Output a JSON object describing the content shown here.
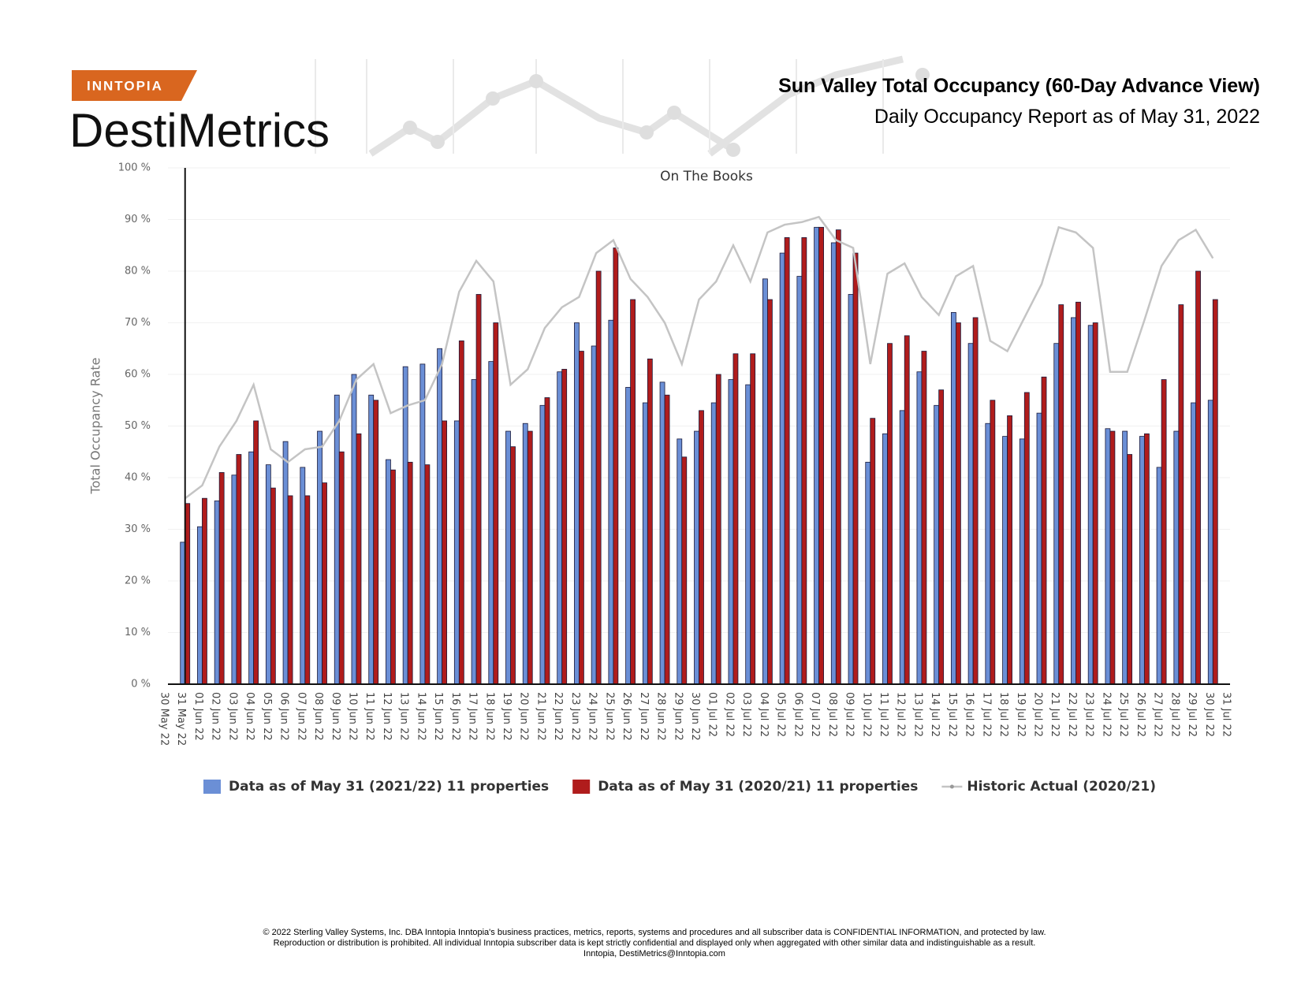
{
  "logo": {
    "brand": "INNTOPIA",
    "product": "DestiMetrics"
  },
  "chart_data": {
    "type": "bar",
    "title": "Sun Valley Total Occupancy (60-Day Advance View)",
    "subtitle": "Daily Occupancy Report as of May 31, 2022",
    "plot_title": "On The Books",
    "y_label": "Total Occupancy Rate",
    "categories": [
      "30 May 22",
      "31 May 22",
      "01 Jun 22",
      "02 Jun 22",
      "03 Jun 22",
      "04 Jun 22",
      "05 Jun 22",
      "06 Jun 22",
      "07 Jun 22",
      "08 Jun 22",
      "09 Jun 22",
      "10 Jun 22",
      "11 Jun 22",
      "12 Jun 22",
      "13 Jun 22",
      "14 Jun 22",
      "15 Jun 22",
      "16 Jun 22",
      "17 Jun 22",
      "18 Jun 22",
      "19 Jun 22",
      "20 Jun 22",
      "21 Jun 22",
      "22 Jun 22",
      "23 Jun 22",
      "24 Jun 22",
      "25 Jun 22",
      "26 Jun 22",
      "27 Jun 22",
      "28 Jun 22",
      "29 Jun 22",
      "30 Jun 22",
      "01 Jul 22",
      "02 Jul 22",
      "03 Jul 22",
      "04 Jul 22",
      "05 Jul 22",
      "06 Jul 22",
      "07 Jul 22",
      "08 Jul 22",
      "09 Jul 22",
      "10 Jul 22",
      "11 Jul 22",
      "12 Jul 22",
      "13 Jul 22",
      "14 Jul 22",
      "15 Jul 22",
      "16 Jul 22",
      "17 Jul 22",
      "18 Jul 22",
      "19 Jul 22",
      "20 Jul 22",
      "21 Jul 22",
      "22 Jul 22",
      "23 Jul 22",
      "24 Jul 22",
      "25 Jul 22",
      "26 Jul 22",
      "27 Jul 22",
      "28 Jul 22",
      "29 Jul 22",
      "30 Jul 22",
      "31 Jul 22"
    ],
    "series": [
      {
        "name": "Data as of May 31 (2021/22) 11 properties",
        "color": "#6b8fd6",
        "type": "bar",
        "values": [
          null,
          27.5,
          30.5,
          35.5,
          40.5,
          45,
          42.5,
          47,
          42,
          49,
          56,
          60,
          56,
          43.5,
          61.5,
          62,
          65,
          51,
          59,
          62.5,
          49,
          50.5,
          54,
          60.5,
          70,
          65.5,
          70.5,
          57.5,
          54.5,
          58.5,
          47.5,
          49,
          54.5,
          59,
          58,
          78.5,
          83.5,
          79,
          88.5,
          85.5,
          75.5,
          43,
          48.5,
          53,
          60.5,
          54,
          72,
          66,
          50.5,
          48,
          47.5,
          52.5,
          66,
          71,
          69.5,
          49.5,
          49,
          48,
          42,
          49,
          54.5,
          55,
          null
        ]
      },
      {
        "name": "Data as of May 31 (2020/21) 11 properties",
        "color": "#b01c1c",
        "type": "bar",
        "values": [
          null,
          35,
          36,
          41,
          44.5,
          51,
          38,
          36.5,
          36.5,
          39,
          45,
          48.5,
          55,
          41.5,
          43,
          42.5,
          51,
          66.5,
          75.5,
          70,
          46,
          49,
          55.5,
          61,
          64.5,
          80,
          84.5,
          74.5,
          63,
          56,
          44,
          53,
          60,
          64,
          64,
          74.5,
          86.5,
          86.5,
          88.5,
          88,
          83.5,
          51.5,
          66,
          67.5,
          64.5,
          57,
          70,
          71,
          55,
          52,
          56.5,
          59.5,
          73.5,
          74,
          70,
          49,
          44.5,
          48.5,
          59,
          73.5,
          80,
          74.5,
          null
        ]
      },
      {
        "name": "Historic Actual (2020/21)",
        "color": "#c4c4c4",
        "type": "line",
        "values": [
          null,
          36,
          38.5,
          46,
          51,
          58,
          45.5,
          43,
          45.5,
          46,
          51,
          59,
          62,
          52.5,
          54,
          55,
          62,
          76,
          82,
          78,
          58,
          61,
          69,
          73,
          75,
          83.5,
          86,
          78.5,
          75,
          70,
          62,
          74.5,
          78,
          85,
          78,
          87.5,
          89,
          89.5,
          90.5,
          86,
          84.5,
          62,
          79.5,
          81.5,
          75,
          71.5,
          79,
          81,
          66.5,
          64.5,
          71,
          77.5,
          88.5,
          87.5,
          84.5,
          60.5,
          60.5,
          70.5,
          81,
          86,
          88,
          82.5,
          null
        ]
      }
    ],
    "ylim": [
      0,
      100
    ],
    "yticks": [
      {
        "value": 0,
        "label": "0 %"
      },
      {
        "value": 10,
        "label": "10 %"
      },
      {
        "value": 20,
        "label": "20 %"
      },
      {
        "value": 30,
        "label": "30 %"
      },
      {
        "value": 40,
        "label": "40 %"
      },
      {
        "value": 50,
        "label": "50 %"
      },
      {
        "value": 60,
        "label": "60 %"
      },
      {
        "value": 70,
        "label": "70 %"
      },
      {
        "value": 80,
        "label": "80 %"
      },
      {
        "value": 90,
        "label": "90 %"
      },
      {
        "value": 100,
        "label": "100 %"
      }
    ],
    "grid": true,
    "legend": "bottom"
  },
  "footer": [
    "© 2022 Sterling Valley Systems, Inc. DBA Inntopia Inntopia's business practices, metrics, reports, systems and procedures and all subscriber data is CONFIDENTIAL INFORMATION, and protected by law.",
    "Reproduction or distribution is prohibited. All individual Inntopia subscriber data is kept strictly confidential and displayed only when aggregated with other similar data and indistinguishable as a result.",
    "Inntopia, DestiMetrics@Inntopia.com"
  ]
}
